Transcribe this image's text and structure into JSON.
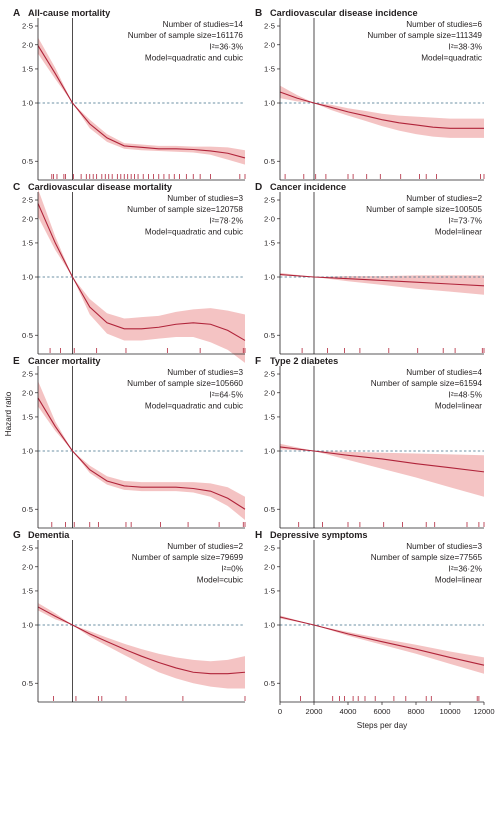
{
  "y_axis_label": "Hazard ratio",
  "x_axis_label": "Steps per day",
  "y_tick_labels": [
    "2·5",
    "2·0",
    "1·5",
    "1·0",
    "0·5"
  ],
  "x_tick_labels": [
    "0",
    "2000",
    "4000",
    "6000",
    "8000",
    "10000",
    "12000"
  ],
  "colors": {
    "curve": "#b0243a",
    "band": "#f2b9b9",
    "reference": "#3c6d86",
    "axis": "#231f20"
  },
  "chart_data": [
    {
      "type": "line",
      "letter": "A",
      "title": "All-cause mortality",
      "stats": [
        "Number of studies=14",
        "Number of sample size=161176",
        "I²=36·3%",
        "Model=quadratic and cubic"
      ],
      "x": [
        0,
        1000,
        2000,
        3000,
        4000,
        5000,
        6000,
        7000,
        8000,
        9000,
        10000,
        11000,
        12000
      ],
      "hazard_ratio": [
        1.98,
        1.42,
        1.0,
        0.78,
        0.66,
        0.6,
        0.59,
        0.58,
        0.58,
        0.575,
        0.565,
        0.55,
        0.52
      ],
      "ci_lower": [
        1.8,
        1.33,
        1.0,
        0.74,
        0.63,
        0.58,
        0.57,
        0.565,
        0.56,
        0.555,
        0.54,
        0.51,
        0.48
      ],
      "ci_upper": [
        2.18,
        1.52,
        1.0,
        0.82,
        0.69,
        0.62,
        0.61,
        0.6,
        0.6,
        0.595,
        0.595,
        0.59,
        0.57
      ],
      "reference_x": 2000,
      "reference_hr": 1.0,
      "rug": [
        800,
        900,
        1100,
        1500,
        1600,
        2050,
        2500,
        2800,
        3000,
        3200,
        3400,
        3700,
        3900,
        4100,
        4300,
        4600,
        4800,
        5000,
        5200,
        5400,
        5600,
        5800,
        6100,
        6400,
        6700,
        7000,
        7300,
        7600,
        7900,
        8200,
        8600,
        9000,
        9400,
        10000,
        11700,
        12000
      ]
    },
    {
      "type": "line",
      "letter": "B",
      "title": "Cardiovascular disease incidence",
      "stats": [
        "Number of studies=6",
        "Number of sample size=111349",
        "I²=38·3%",
        "Model=quadratic"
      ],
      "x": [
        0,
        1000,
        2000,
        3000,
        4000,
        5000,
        6000,
        7000,
        8000,
        9000,
        10000,
        11000,
        12000
      ],
      "hazard_ratio": [
        1.14,
        1.06,
        1.0,
        0.95,
        0.9,
        0.86,
        0.82,
        0.79,
        0.77,
        0.75,
        0.74,
        0.74,
        0.74
      ],
      "ci_lower": [
        1.06,
        1.02,
        1.0,
        0.92,
        0.86,
        0.81,
        0.76,
        0.72,
        0.69,
        0.67,
        0.66,
        0.66,
        0.66
      ],
      "ci_upper": [
        1.23,
        1.1,
        1.0,
        0.98,
        0.94,
        0.91,
        0.88,
        0.86,
        0.85,
        0.84,
        0.83,
        0.83,
        0.83
      ],
      "reference_x": 2000,
      "reference_hr": 1.0,
      "rug": [
        300,
        1400,
        2100,
        2700,
        4000,
        4300,
        5100,
        5900,
        7100,
        8200,
        8600,
        9200,
        11800,
        12000
      ]
    },
    {
      "type": "line",
      "letter": "C",
      "title": "Cardiovascular disease mortality",
      "stats": [
        "Number of studies=3",
        "Number of sample size=120758",
        "I²=78·2%",
        "Model=quadratic and cubic"
      ],
      "x": [
        0,
        1000,
        2000,
        3000,
        4000,
        5000,
        6000,
        7000,
        8000,
        9000,
        10000,
        11000,
        12000
      ],
      "hazard_ratio": [
        2.4,
        1.5,
        1.0,
        0.7,
        0.58,
        0.54,
        0.54,
        0.55,
        0.57,
        0.58,
        0.57,
        0.53,
        0.47
      ],
      "ci_lower": [
        2.05,
        1.38,
        1.0,
        0.64,
        0.51,
        0.47,
        0.47,
        0.48,
        0.49,
        0.49,
        0.46,
        0.42,
        0.36
      ],
      "ci_upper": [
        2.85,
        1.62,
        1.0,
        0.77,
        0.65,
        0.61,
        0.62,
        0.63,
        0.66,
        0.68,
        0.69,
        0.67,
        0.64
      ],
      "reference_x": 2000,
      "reference_hr": 1.0,
      "rug": [
        700,
        1300,
        2100,
        3400,
        5100,
        7500,
        9400,
        11900,
        12000
      ]
    },
    {
      "type": "line",
      "letter": "D",
      "title": "Cancer incidence",
      "stats": [
        "Number of studies=2",
        "Number of sample size=100505",
        "I²=73·7%",
        "Model=linear"
      ],
      "x": [
        0,
        2000,
        4000,
        6000,
        8000,
        10000,
        12000
      ],
      "hazard_ratio": [
        1.03,
        1.0,
        0.98,
        0.96,
        0.94,
        0.92,
        0.9
      ],
      "ci_lower": [
        1.02,
        1.0,
        0.95,
        0.91,
        0.87,
        0.84,
        0.81
      ],
      "ci_upper": [
        1.05,
        1.0,
        1.01,
        1.01,
        1.02,
        1.02,
        1.02
      ],
      "reference_x": 2000,
      "reference_hr": 1.0,
      "rug": [
        1300,
        2800,
        3800,
        4700,
        6400,
        8100,
        9600,
        10300,
        11900,
        12000
      ]
    },
    {
      "type": "line",
      "letter": "E",
      "title": "Cancer mortality",
      "stats": [
        "Number of studies=3",
        "Number of sample size=105660",
        "I²=64·5%",
        "Model=quadratic and cubic"
      ],
      "x": [
        0,
        1000,
        2000,
        3000,
        4000,
        5000,
        6000,
        7000,
        8000,
        9000,
        10000,
        11000,
        12000
      ],
      "hazard_ratio": [
        1.88,
        1.34,
        1.0,
        0.8,
        0.7,
        0.66,
        0.65,
        0.65,
        0.65,
        0.64,
        0.62,
        0.57,
        0.5
      ],
      "ci_lower": [
        1.7,
        1.27,
        1.0,
        0.77,
        0.67,
        0.63,
        0.62,
        0.62,
        0.62,
        0.61,
        0.58,
        0.52,
        0.44
      ],
      "ci_upper": [
        2.3,
        1.42,
        1.0,
        0.84,
        0.74,
        0.7,
        0.69,
        0.69,
        0.69,
        0.69,
        0.68,
        0.65,
        0.58
      ],
      "reference_x": 2000,
      "reference_hr": 1.0,
      "rug": [
        800,
        1600,
        2100,
        3000,
        3500,
        5100,
        5400,
        7100,
        8700,
        10500,
        11900,
        12000
      ]
    },
    {
      "type": "line",
      "letter": "F",
      "title": "Type 2 diabetes",
      "stats": [
        "Number of studies=4",
        "Number of sample size=61594",
        "I²=48·5%",
        "Model=linear"
      ],
      "x": [
        0,
        2000,
        4000,
        6000,
        8000,
        10000,
        12000
      ],
      "hazard_ratio": [
        1.05,
        1.0,
        0.95,
        0.91,
        0.86,
        0.82,
        0.78
      ],
      "ci_lower": [
        1.02,
        1.0,
        0.9,
        0.81,
        0.73,
        0.65,
        0.58
      ],
      "ci_upper": [
        1.09,
        1.0,
        0.99,
        0.98,
        0.97,
        0.96,
        0.95
      ],
      "reference_x": 2000,
      "reference_hr": 1.0,
      "rug": [
        1100,
        2500,
        4000,
        4700,
        6100,
        7200,
        8600,
        9100,
        11000,
        11700,
        12000
      ]
    },
    {
      "type": "line",
      "letter": "G",
      "title": "Dementia",
      "stats": [
        "Number of studies=2",
        "Number of sample size=79699",
        "I²=0%",
        "Model=cubic"
      ],
      "x": [
        0,
        1000,
        2000,
        3000,
        4000,
        5000,
        6000,
        7000,
        8000,
        9000,
        10000,
        11000,
        12000
      ],
      "hazard_ratio": [
        1.24,
        1.11,
        1.0,
        0.9,
        0.82,
        0.75,
        0.69,
        0.64,
        0.6,
        0.57,
        0.56,
        0.56,
        0.57
      ],
      "ci_lower": [
        1.19,
        1.07,
        1.0,
        0.87,
        0.78,
        0.7,
        0.63,
        0.57,
        0.53,
        0.5,
        0.48,
        0.47,
        0.47
      ],
      "ci_upper": [
        1.3,
        1.15,
        1.0,
        0.93,
        0.86,
        0.8,
        0.75,
        0.71,
        0.68,
        0.66,
        0.65,
        0.66,
        0.69
      ],
      "reference_x": 2000,
      "reference_hr": 1.0,
      "rug": [
        900,
        2200,
        3500,
        3700,
        5100,
        8400,
        12000
      ]
    },
    {
      "type": "line",
      "letter": "H",
      "title": "Depressive symptoms",
      "stats": [
        "Number of studies=3",
        "Number of sample size=77565",
        "I²=36·2%",
        "Model=linear"
      ],
      "x": [
        0,
        2000,
        4000,
        6000,
        8000,
        10000,
        12000
      ],
      "hazard_ratio": [
        1.1,
        1.0,
        0.9,
        0.82,
        0.75,
        0.68,
        0.62
      ],
      "ci_lower": [
        1.08,
        1.0,
        0.88,
        0.79,
        0.71,
        0.63,
        0.56
      ],
      "ci_upper": [
        1.12,
        1.0,
        0.92,
        0.85,
        0.79,
        0.73,
        0.68
      ],
      "reference_x": 2000,
      "reference_hr": 1.0,
      "rug": [
        1200,
        3100,
        3500,
        3800,
        4300,
        4600,
        5000,
        5600,
        6700,
        7400,
        8600,
        8900,
        11600,
        11700
      ]
    }
  ]
}
